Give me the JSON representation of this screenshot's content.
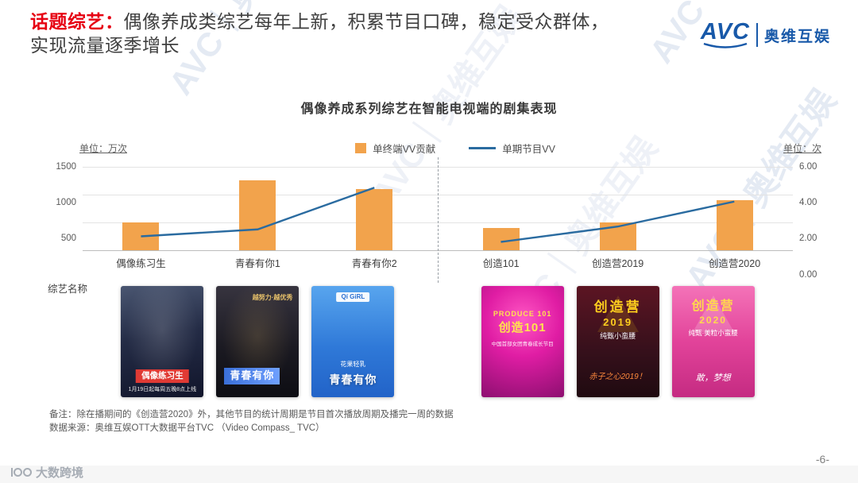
{
  "header": {
    "title_highlight": "话题综艺",
    "title_colon": "：",
    "title_line1": "偶像养成类综艺每年上新，积累节目口碑，稳定受众群体，",
    "title_line2": "实现流量逐季增长",
    "logo": {
      "abbr": "AVC",
      "name": "奥维互娱"
    }
  },
  "chart": {
    "title": "偶像养成系列综艺在智能电视端的剧集表现",
    "left_unit": "单位：万次",
    "right_unit": "单位：次",
    "x_axis_name": "综艺名称",
    "legend": [
      {
        "label": "单终端VV贡献",
        "marker": "bar"
      },
      {
        "label": "单期节目VV",
        "marker": "line"
      }
    ]
  },
  "chart_data": {
    "type": "bar",
    "title": "偶像养成系列综艺在智能电视端的剧集表现",
    "bar_series": "单终端VV贡献",
    "line_series": "单期节目VV",
    "left_axis": {
      "label": "单位：万次",
      "ticks": [
        "1500",
        "1000",
        "500"
      ],
      "min": 0,
      "max": 1500
    },
    "right_axis": {
      "label": "单位：次",
      "ticks": [
        "6.00",
        "4.00",
        "2.00",
        "0.00"
      ],
      "min": 0,
      "max": 6
    },
    "grid": true,
    "legend_position": "top-center",
    "groups": [
      {
        "categories": [
          "偶像练习生",
          "青春有你1",
          "青春有你2"
        ],
        "bar_values": [
          500,
          1250,
          1100
        ],
        "line_values": [
          1.0,
          1.5,
          4.5
        ]
      },
      {
        "categories": [
          "创造101",
          "创造营2019",
          "创造营2020"
        ],
        "bar_values": [
          400,
          500,
          900
        ],
        "line_values": [
          0.6,
          1.7,
          3.5
        ]
      }
    ]
  },
  "posters": [
    {
      "theme": "navy",
      "title": "偶像练习生",
      "strip": "1月19日起每周五晚8点上线"
    },
    {
      "theme": "black",
      "title": "青春有你",
      "sub": "越努力·越优秀"
    },
    {
      "theme": "blue",
      "title": "青春有你",
      "badge": "Qí GiRL",
      "sub": "花果轻乳"
    },
    {
      "theme": "magenta",
      "title": "创造101",
      "badge": "PRODUCE 101",
      "sub": "中国首部女团青春成长节目"
    },
    {
      "theme": "darkred",
      "title": "创造营",
      "title2": "2019",
      "sub": "纯甄小蛮腰",
      "strip": "赤子之心2019！"
    },
    {
      "theme": "pink",
      "title": "创造营",
      "title2": "2020",
      "sub": "纯甄·美粒小蛮腰",
      "strip": "敢，梦想"
    }
  ],
  "footer": {
    "note1": "备注：除在播期间的《创造营2020》外，其他节目的统计周期是节目首次播放周期及播完一周的数据",
    "note2": "数据来源：奥维互娱OTT大数据平台TVC （Video Compass_ TVC）",
    "page": "-6-"
  },
  "watermark": {
    "text": "AVC｜奥维互娱",
    "corner": "大数跨境"
  },
  "colors": {
    "bar": "#F2A34C",
    "line": "#2A6BA0",
    "accent_red": "#E60012",
    "logo_blue": "#1859A9"
  }
}
